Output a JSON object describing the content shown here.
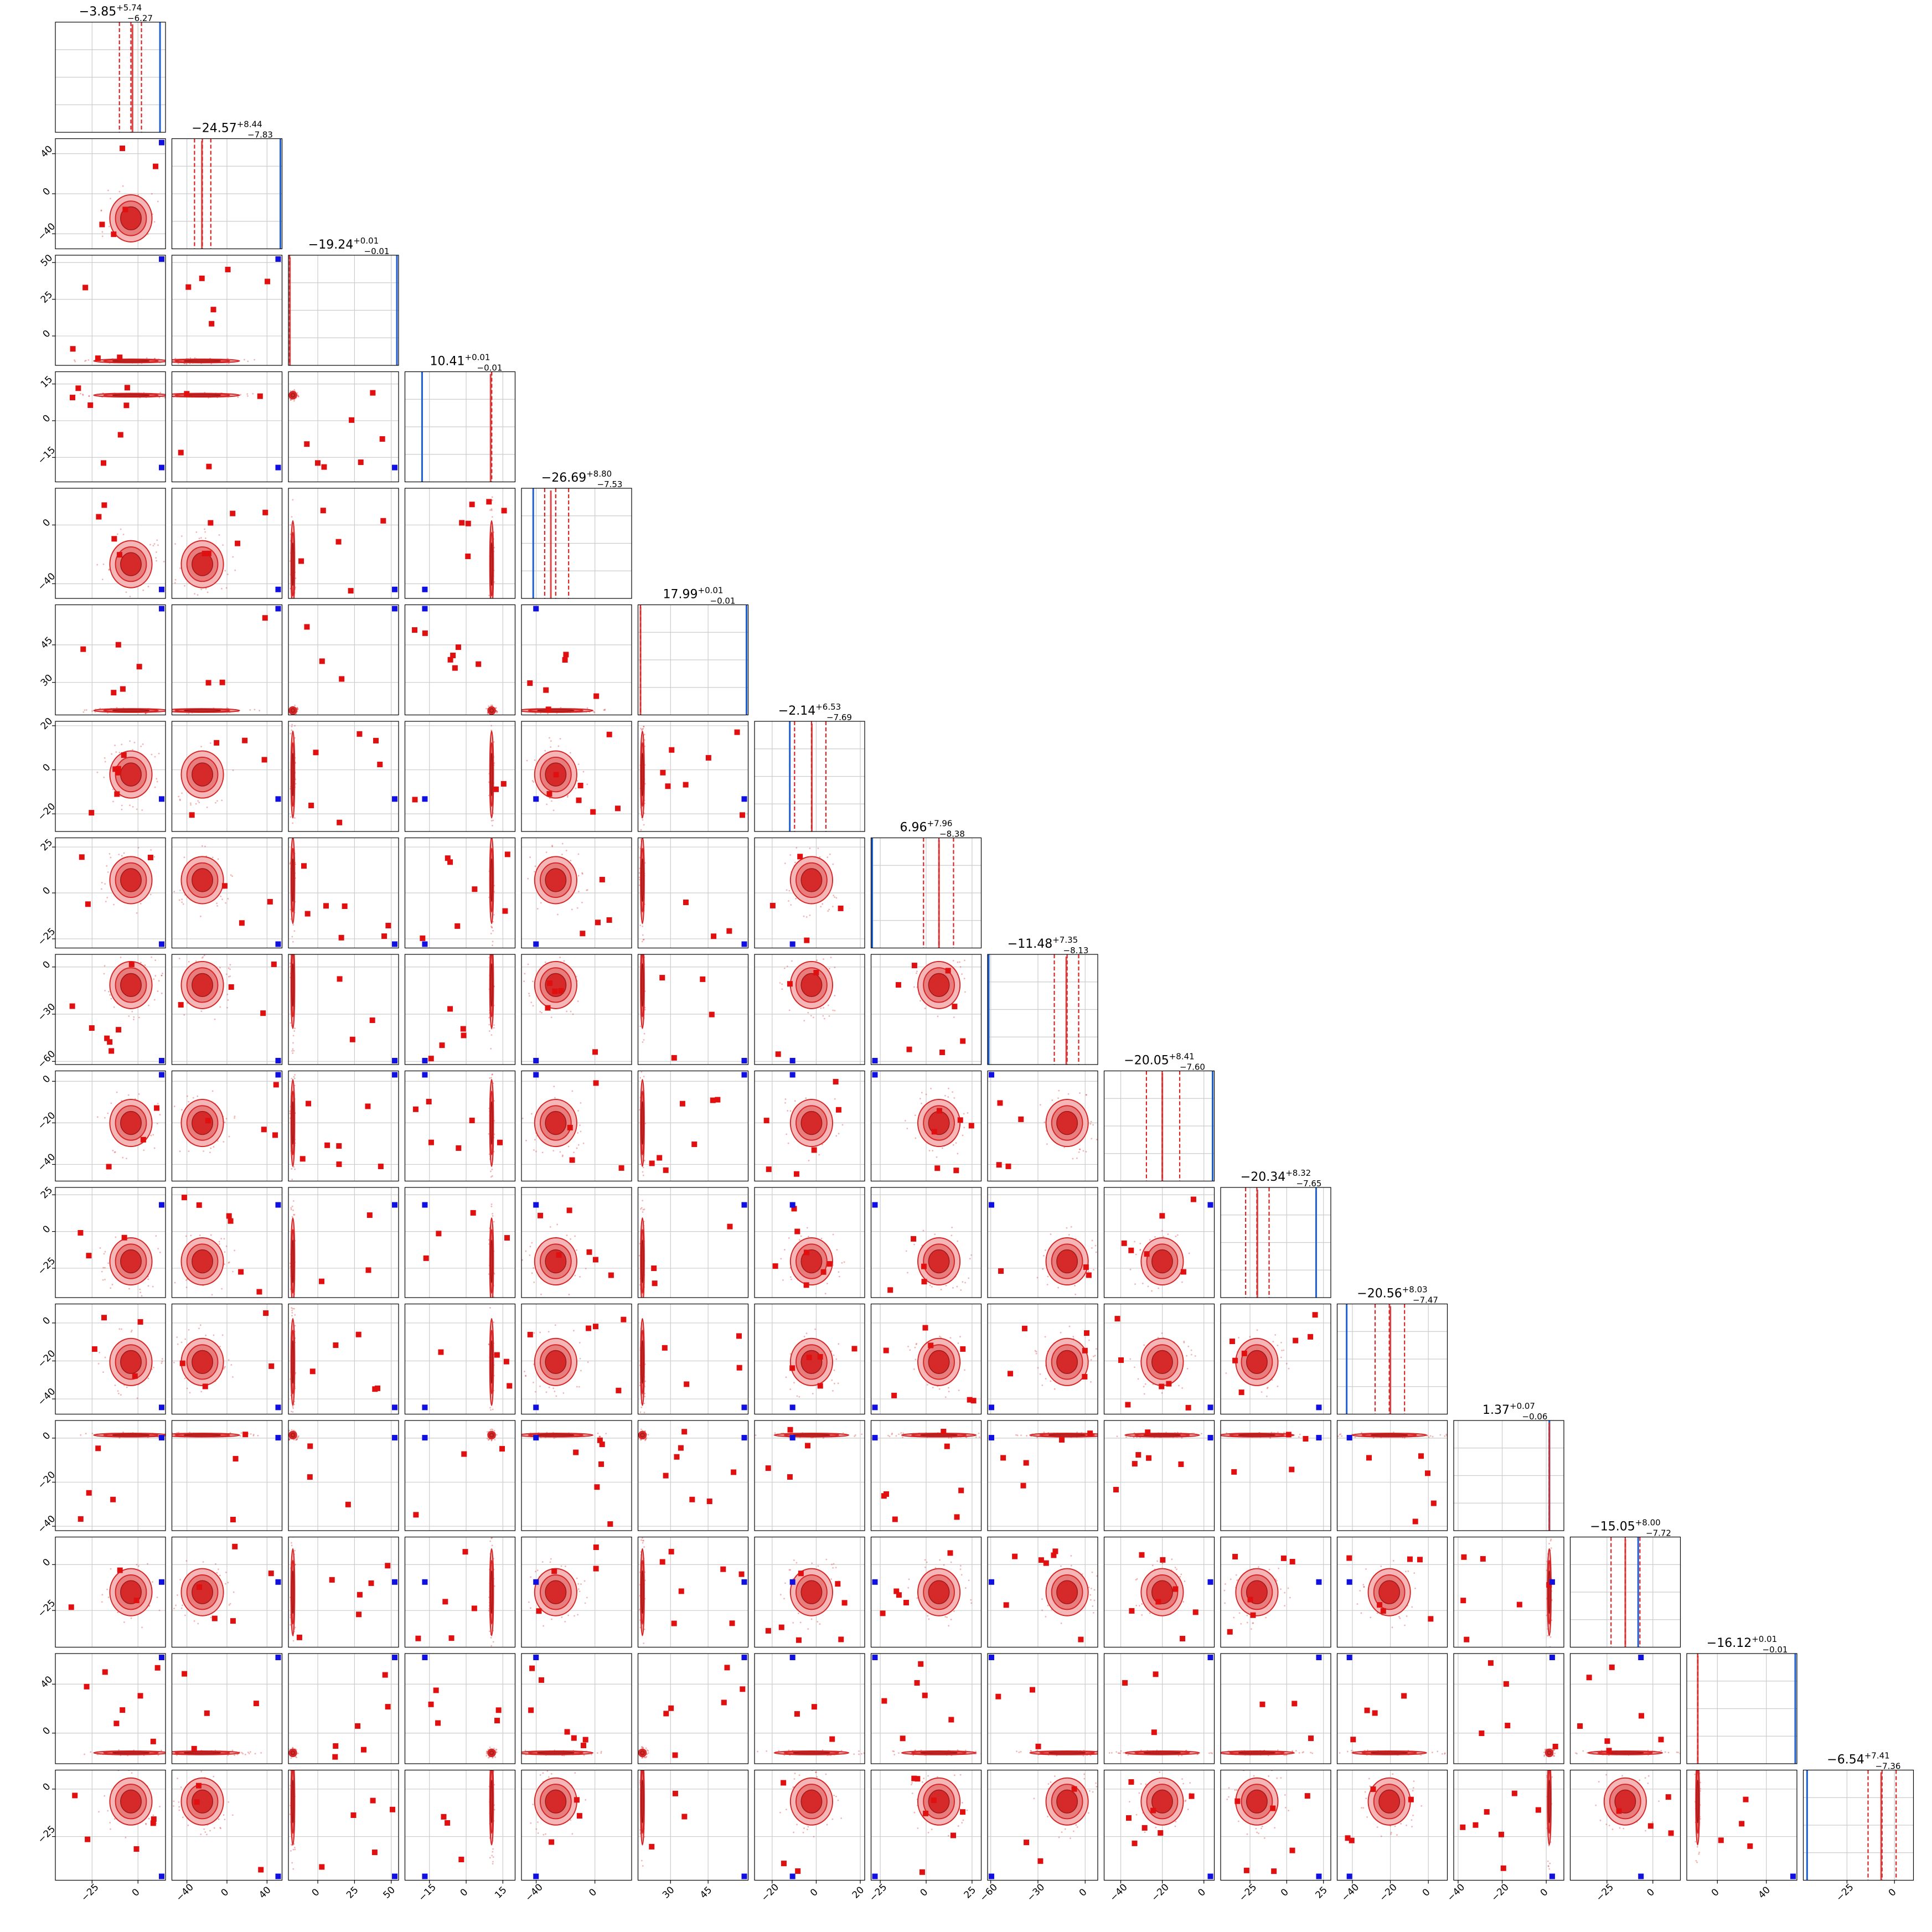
{
  "chart_data": {
    "type": "corner",
    "colors": {
      "samples": "#d62728",
      "fill_outer": "#f4b6b6",
      "fill_mid": "#e87d7d",
      "fill_inner": "#d62a2a",
      "truth": "#1f5fd4",
      "grid": "#cccccc"
    },
    "grid": true,
    "params": [
      {
        "title_value": "−3.85",
        "title_plus": "+5.74",
        "title_minus": "−6.27",
        "range": [
          -45,
          15
        ],
        "ticks": [
          -25,
          0
        ],
        "tick_labels": [
          "−25",
          "0"
        ],
        "median": -3.85,
        "lower": -10.12,
        "upper": 1.89,
        "truth": 12,
        "mode": -3
      },
      {
        "title_value": "−24.57",
        "title_plus": "+8.44",
        "title_minus": "−7.83",
        "range": [
          -55,
          55
        ],
        "ticks": [
          -40,
          0,
          40
        ],
        "tick_labels": [
          "−40",
          "0",
          "40"
        ],
        "median": -24.57,
        "lower": -32.4,
        "upper": -16.13,
        "truth": 55,
        "mode": -25
      },
      {
        "title_value": "−19.24",
        "title_plus": "+0.01",
        "title_minus": "−0.01",
        "range": [
          -20,
          55
        ],
        "ticks": [
          0,
          25,
          50
        ],
        "tick_labels": [
          "0",
          "25",
          "50"
        ],
        "median": -19.24,
        "lower": -19.25,
        "upper": -19.23,
        "truth": 55,
        "mode": -19
      },
      {
        "title_value": "10.41",
        "title_plus": "+0.01",
        "title_minus": "−0.01",
        "range": [
          -25,
          20
        ],
        "ticks": [
          -15,
          0,
          15
        ],
        "tick_labels": [
          "−15",
          "0",
          "15"
        ],
        "median": 10.41,
        "lower": 10.4,
        "upper": 10.42,
        "truth": -18,
        "mode": 10
      },
      {
        "title_value": "−26.69",
        "title_plus": "+8.80",
        "title_minus": "−7.53",
        "range": [
          -50,
          25
        ],
        "ticks": [
          -40,
          0
        ],
        "tick_labels": [
          "−40",
          "0"
        ],
        "median": -26.69,
        "lower": -34.22,
        "upper": -17.89,
        "truth": -42,
        "mode": -30
      },
      {
        "title_value": "17.99",
        "title_plus": "+0.01",
        "title_minus": "−0.01",
        "range": [
          17,
          61
        ],
        "ticks": [
          30,
          45
        ],
        "tick_labels": [
          "30",
          "45"
        ],
        "median": 17.99,
        "lower": 17.98,
        "upper": 18.0,
        "truth": 61,
        "mode": 18
      },
      {
        "title_value": "−2.14",
        "title_plus": "+6.53",
        "title_minus": "−7.69",
        "range": [
          -28,
          22
        ],
        "ticks": [
          -20,
          0,
          20
        ],
        "tick_labels": [
          "−20",
          "0",
          "20"
        ],
        "median": -2.14,
        "lower": -9.83,
        "upper": 4.39,
        "truth": -12,
        "mode": -2
      },
      {
        "title_value": "6.96",
        "title_plus": "+7.96",
        "title_minus": "−8.38",
        "range": [
          -30,
          30
        ],
        "ticks": [
          -25,
          0,
          25
        ],
        "tick_labels": [
          "−25",
          "0",
          "25"
        ],
        "median": 6.96,
        "lower": -1.42,
        "upper": 14.92,
        "truth": -30,
        "mode": 7
      },
      {
        "title_value": "−11.48",
        "title_plus": "+7.35",
        "title_minus": "−8.13",
        "range": [
          -62,
          8
        ],
        "ticks": [
          -60,
          -30,
          0
        ],
        "tick_labels": [
          "−60",
          "−30",
          "0"
        ],
        "median": -11.48,
        "lower": -19.61,
        "upper": -4.13,
        "truth": -62,
        "mode": -12
      },
      {
        "title_value": "−20.05",
        "title_plus": "+8.41",
        "title_minus": "−7.60",
        "range": [
          -48,
          5
        ],
        "ticks": [
          -40,
          -20,
          0
        ],
        "tick_labels": [
          "−40",
          "−20",
          "0"
        ],
        "median": -20.05,
        "lower": -27.65,
        "upper": -11.64,
        "truth": 5,
        "mode": -20
      },
      {
        "title_value": "−20.34",
        "title_plus": "+8.32",
        "title_minus": "−7.65",
        "range": [
          -45,
          30
        ],
        "ticks": [
          -25,
          0,
          25
        ],
        "tick_labels": [
          "−25",
          "0",
          "25"
        ],
        "median": -20.34,
        "lower": -27.99,
        "upper": -12.02,
        "truth": 20,
        "mode": -20
      },
      {
        "title_value": "−20.56",
        "title_plus": "+8.03",
        "title_minus": "−7.47",
        "range": [
          -48,
          10
        ],
        "ticks": [
          -40,
          -20,
          0
        ],
        "tick_labels": [
          "−40",
          "−20",
          "0"
        ],
        "median": -20.56,
        "lower": -28.03,
        "upper": -12.53,
        "truth": -43,
        "mode": -20
      },
      {
        "title_value": "1.37",
        "title_plus": "+0.07",
        "title_minus": "−0.06",
        "range": [
          -42,
          8
        ],
        "ticks": [
          -40,
          -20,
          0
        ],
        "tick_labels": [
          "−40",
          "−20",
          "0"
        ],
        "median": 1.37,
        "lower": 1.31,
        "upper": 1.44,
        "truth": 1.45,
        "mode": 1.4
      },
      {
        "title_value": "−15.05",
        "title_plus": "+8.00",
        "title_minus": "−7.72",
        "range": [
          -45,
          15
        ],
        "ticks": [
          -25,
          0
        ],
        "tick_labels": [
          "−25",
          "0"
        ],
        "median": -15.05,
        "lower": -22.77,
        "upper": -7.05,
        "truth": -8,
        "mode": -15
      },
      {
        "title_value": "−16.12",
        "title_plus": "+0.01",
        "title_minus": "−0.01",
        "range": [
          -25,
          65
        ],
        "ticks": [
          0,
          40
        ],
        "tick_labels": [
          "0",
          "40"
        ],
        "median": -16.12,
        "lower": -16.13,
        "upper": -16.11,
        "truth": 65,
        "mode": -16
      },
      {
        "title_value": "−6.54",
        "title_plus": "+7.41",
        "title_minus": "−7.36",
        "range": [
          -48,
          10
        ],
        "ticks": [
          -25,
          0
        ],
        "tick_labels": [
          "−25",
          "0"
        ],
        "median": -6.54,
        "lower": -13.9,
        "upper": 0.87,
        "truth": -46,
        "mode": -7
      }
    ]
  }
}
